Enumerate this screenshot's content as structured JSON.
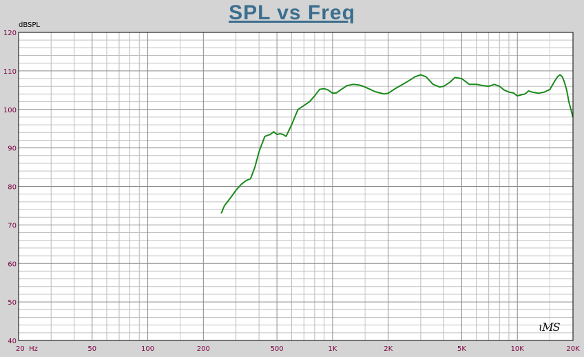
{
  "chart_data": {
    "type": "line",
    "title": "SPL vs Freq",
    "ylabel": "dBSPL",
    "xlabel": "",
    "xscale": "log",
    "xlim": [
      20,
      20000
    ],
    "ylim": [
      40,
      120
    ],
    "yticks": [
      40,
      50,
      60,
      70,
      80,
      90,
      100,
      110,
      120
    ],
    "xticks": [
      {
        "value": 20,
        "label": "20  Hz"
      },
      {
        "value": 50,
        "label": "50"
      },
      {
        "value": 100,
        "label": "100"
      },
      {
        "value": 200,
        "label": "200"
      },
      {
        "value": 500,
        "label": "500"
      },
      {
        "value": 1000,
        "label": "1K"
      },
      {
        "value": 2000,
        "label": "2K"
      },
      {
        "value": 5000,
        "label": "5K"
      },
      {
        "value": 10000,
        "label": "10K"
      },
      {
        "value": 20000,
        "label": "20K"
      }
    ],
    "grid": true,
    "series": [
      {
        "color": "#1a8a1a",
        "x": [
          250,
          260,
          270,
          285,
          300,
          320,
          340,
          360,
          380,
          400,
          430,
          460,
          480,
          500,
          520,
          540,
          560,
          580,
          600,
          650,
          700,
          750,
          800,
          850,
          900,
          950,
          1000,
          1050,
          1100,
          1200,
          1300,
          1400,
          1500,
          1700,
          1900,
          2000,
          2200,
          2400,
          2600,
          2800,
          3000,
          3200,
          3500,
          3800,
          4000,
          4300,
          4600,
          5000,
          5500,
          6000,
          6500,
          7000,
          7500,
          8000,
          8500,
          9000,
          9500,
          10000,
          10500,
          11000,
          11500,
          12000,
          13000,
          14000,
          15000,
          16000,
          16500,
          17000,
          17500,
          18000,
          18500,
          19000,
          19500,
          20000
        ],
        "values": [
          73,
          75,
          76,
          77.5,
          79,
          80.5,
          81.5,
          82,
          85,
          89,
          93,
          93.5,
          94.2,
          93.5,
          93.7,
          93.5,
          93,
          94.5,
          96,
          100,
          101,
          102,
          103.5,
          105.2,
          105.4,
          105,
          104.2,
          104.3,
          105,
          106.2,
          106.5,
          106.3,
          105.8,
          104.6,
          104,
          104.2,
          105.5,
          106.5,
          107.5,
          108.5,
          109,
          108.5,
          106.5,
          105.8,
          106,
          107,
          108.3,
          108,
          106.5,
          106.5,
          106.2,
          106,
          106.5,
          106,
          105,
          104.5,
          104.3,
          103.5,
          103.8,
          104,
          104.8,
          104.5,
          104.2,
          104.5,
          105.2,
          107.5,
          108.5,
          109,
          108.5,
          107,
          105,
          102,
          100,
          98
        ]
      }
    ]
  },
  "watermark": "LMS"
}
